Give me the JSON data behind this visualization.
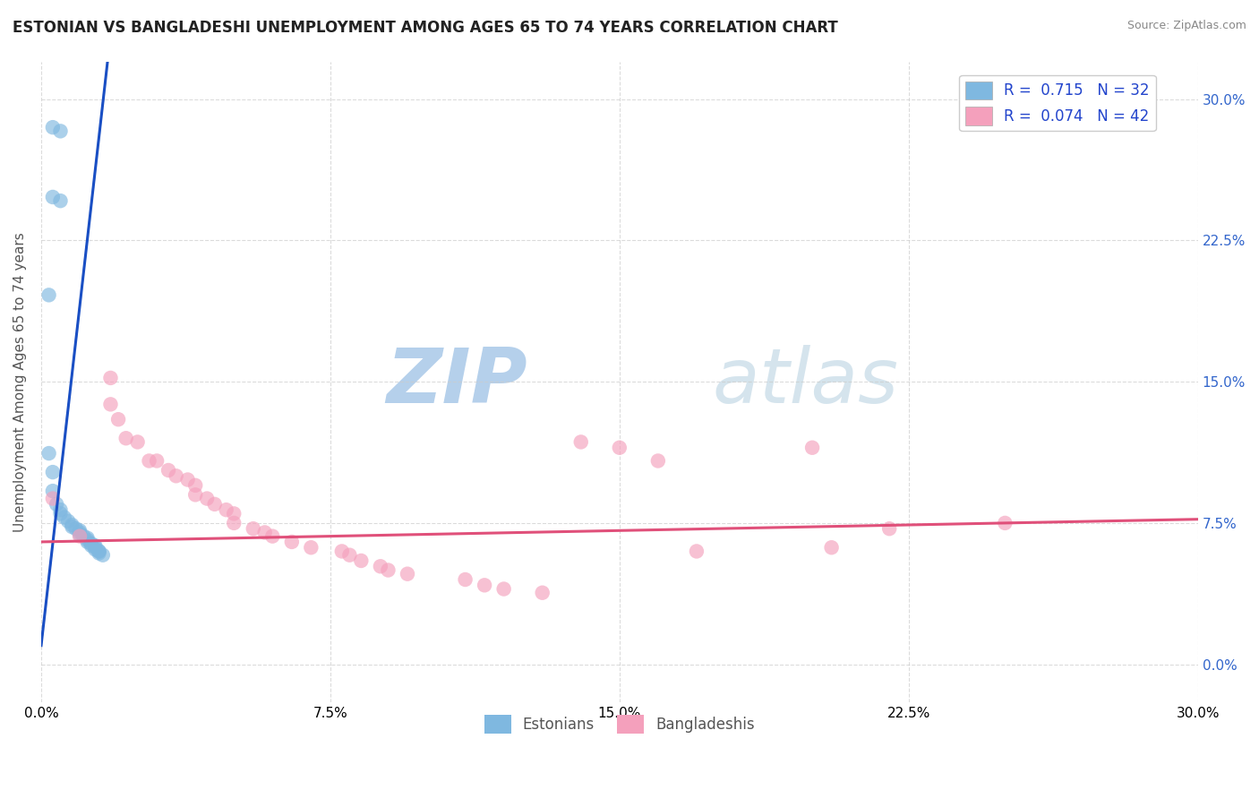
{
  "title": "ESTONIAN VS BANGLADESHI UNEMPLOYMENT AMONG AGES 65 TO 74 YEARS CORRELATION CHART",
  "source_text": "Source: ZipAtlas.com",
  "ylabel_label": "Unemployment Among Ages 65 to 74 years",
  "xmin": 0.0,
  "xmax": 0.3,
  "ymin": -0.02,
  "ymax": 0.32,
  "watermark_text": "ZIPatlas",
  "watermark_color": "#c8dff0",
  "estonian_color": "#7fb8e0",
  "estonian_edge_color": "none",
  "estonian_line_color": "#1a4fc4",
  "estonian_line_dash_color": "#6a9fd8",
  "bangladeshi_color": "#f4a0bc",
  "bangladeshi_line_color": "#e0507a",
  "legend_R1": "0.715",
  "legend_N1": "32",
  "legend_R2": "0.074",
  "legend_N2": "42",
  "legend_color1": "#7fb8e0",
  "legend_color2": "#f4a0bc",
  "legend_text_color": "#2244cc",
  "estonian_points": [
    [
      0.003,
      0.285
    ],
    [
      0.005,
      0.283
    ],
    [
      0.003,
      0.248
    ],
    [
      0.005,
      0.246
    ],
    [
      0.002,
      0.196
    ],
    [
      0.002,
      0.112
    ],
    [
      0.003,
      0.102
    ],
    [
      0.003,
      0.092
    ],
    [
      0.004,
      0.085
    ],
    [
      0.005,
      0.082
    ],
    [
      0.005,
      0.08
    ],
    [
      0.006,
      0.078
    ],
    [
      0.007,
      0.076
    ],
    [
      0.008,
      0.074
    ],
    [
      0.008,
      0.073
    ],
    [
      0.009,
      0.072
    ],
    [
      0.01,
      0.071
    ],
    [
      0.01,
      0.07
    ],
    [
      0.01,
      0.069
    ],
    [
      0.011,
      0.068
    ],
    [
      0.012,
      0.067
    ],
    [
      0.012,
      0.066
    ],
    [
      0.012,
      0.065
    ],
    [
      0.013,
      0.064
    ],
    [
      0.013,
      0.063
    ],
    [
      0.014,
      0.063
    ],
    [
      0.014,
      0.062
    ],
    [
      0.014,
      0.061
    ],
    [
      0.015,
      0.06
    ],
    [
      0.015,
      0.06
    ],
    [
      0.015,
      0.059
    ],
    [
      0.016,
      0.058
    ]
  ],
  "bangladeshi_points": [
    [
      0.003,
      0.088
    ],
    [
      0.01,
      0.068
    ],
    [
      0.018,
      0.152
    ],
    [
      0.018,
      0.138
    ],
    [
      0.02,
      0.13
    ],
    [
      0.022,
      0.12
    ],
    [
      0.025,
      0.118
    ],
    [
      0.028,
      0.108
    ],
    [
      0.03,
      0.108
    ],
    [
      0.033,
      0.103
    ],
    [
      0.035,
      0.1
    ],
    [
      0.038,
      0.098
    ],
    [
      0.04,
      0.095
    ],
    [
      0.04,
      0.09
    ],
    [
      0.043,
      0.088
    ],
    [
      0.045,
      0.085
    ],
    [
      0.048,
      0.082
    ],
    [
      0.05,
      0.08
    ],
    [
      0.05,
      0.075
    ],
    [
      0.055,
      0.072
    ],
    [
      0.058,
      0.07
    ],
    [
      0.06,
      0.068
    ],
    [
      0.065,
      0.065
    ],
    [
      0.07,
      0.062
    ],
    [
      0.078,
      0.06
    ],
    [
      0.08,
      0.058
    ],
    [
      0.083,
      0.055
    ],
    [
      0.088,
      0.052
    ],
    [
      0.09,
      0.05
    ],
    [
      0.095,
      0.048
    ],
    [
      0.11,
      0.045
    ],
    [
      0.115,
      0.042
    ],
    [
      0.12,
      0.04
    ],
    [
      0.13,
      0.038
    ],
    [
      0.14,
      0.118
    ],
    [
      0.15,
      0.115
    ],
    [
      0.16,
      0.108
    ],
    [
      0.17,
      0.06
    ],
    [
      0.2,
      0.115
    ],
    [
      0.205,
      0.062
    ],
    [
      0.22,
      0.072
    ],
    [
      0.25,
      0.075
    ]
  ],
  "title_fontsize": 12,
  "axis_label_fontsize": 11,
  "tick_fontsize": 11,
  "legend_fontsize": 12,
  "background_color": "#ffffff",
  "grid_color": "#cccccc"
}
